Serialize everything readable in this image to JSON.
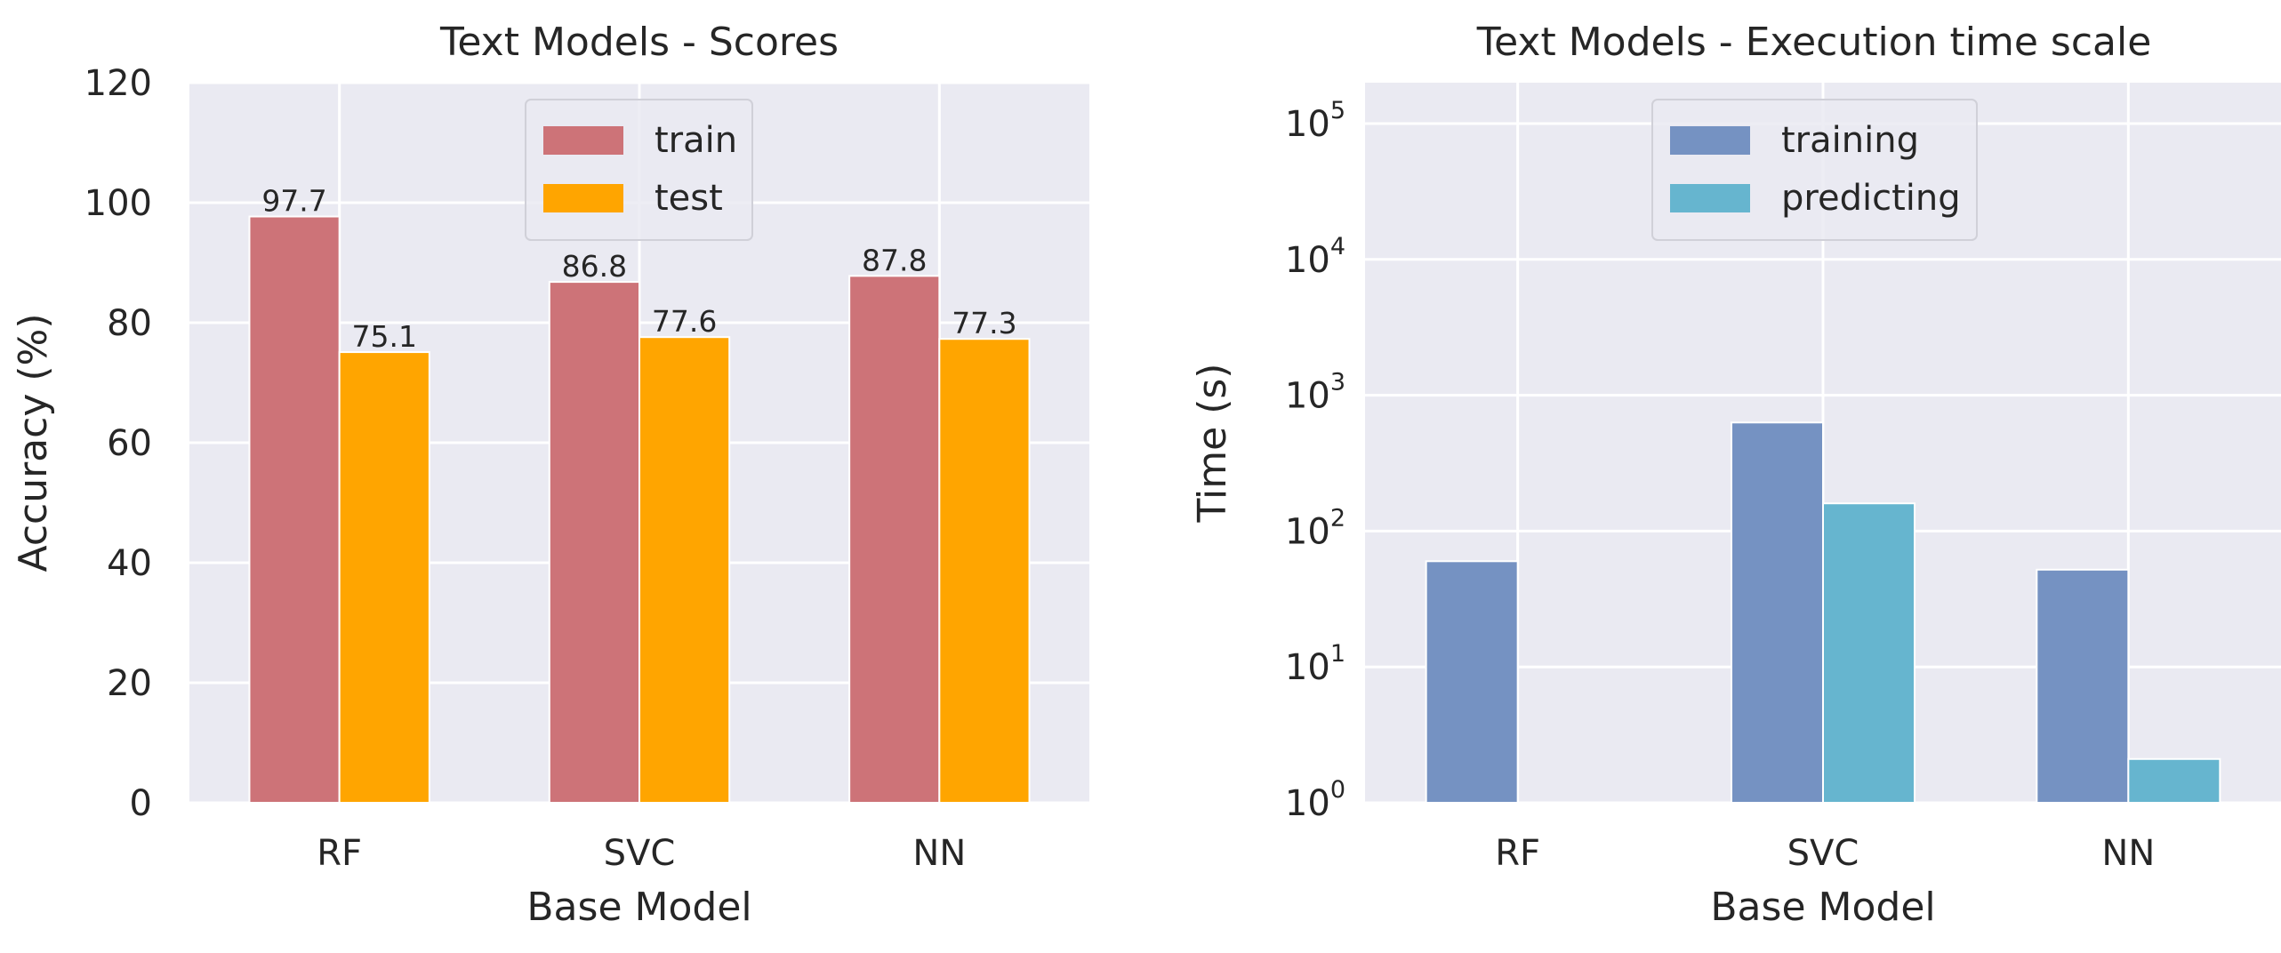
{
  "chart_data": [
    {
      "type": "bar",
      "title": "Text Models - Scores",
      "xlabel": "Base Model",
      "ylabel": "Accuracy (%)",
      "categories": [
        "RF",
        "SVC",
        "NN"
      ],
      "ylim": [
        0,
        120
      ],
      "yticks": [
        "0",
        "20",
        "40",
        "60",
        "80",
        "100",
        "120"
      ],
      "grid": true,
      "legend_position": "top-center",
      "series": [
        {
          "name": "train",
          "values": [
            97.7,
            86.8,
            87.8
          ],
          "labels": [
            "97.7",
            "86.8",
            "87.8"
          ],
          "color": "#CD7378"
        },
        {
          "name": "test",
          "values": [
            75.1,
            77.6,
            77.3
          ],
          "labels": [
            "75.1",
            "77.6",
            "77.3"
          ],
          "color": "#FFA500"
        }
      ]
    },
    {
      "type": "bar",
      "title": "Text Models - Execution time scale",
      "xlabel": "Base Model",
      "ylabel": "Time (s)",
      "categories": [
        "RF",
        "SVC",
        "NN"
      ],
      "yscale": "log",
      "ylim": [
        1,
        200000
      ],
      "yticks": [
        {
          "base": "10",
          "exp": "0"
        },
        {
          "base": "10",
          "exp": "1"
        },
        {
          "base": "10",
          "exp": "2"
        },
        {
          "base": "10",
          "exp": "3"
        },
        {
          "base": "10",
          "exp": "4"
        },
        {
          "base": "10",
          "exp": "5"
        }
      ],
      "grid": true,
      "legend_position": "top-center",
      "series": [
        {
          "name": "training",
          "values": [
            60,
            630,
            52
          ],
          "color": "#7592C2"
        },
        {
          "name": "predicting",
          "values": [
            1,
            160,
            2.1
          ],
          "color": "#66B5CF"
        }
      ]
    }
  ]
}
